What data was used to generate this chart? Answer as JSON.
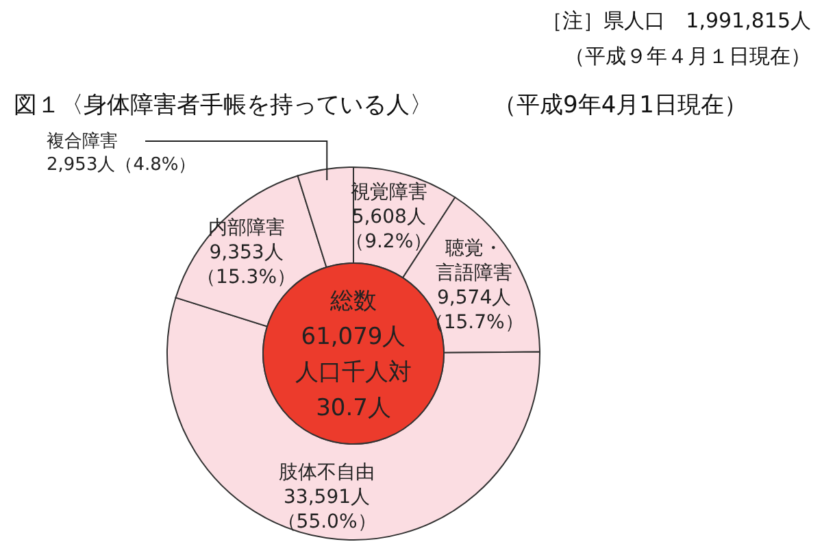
{
  "chart_data": {
    "type": "donut",
    "title": "図１〈身体障害者手帳を持っている人〉",
    "subtitle": "（平成9年4月1日現在）",
    "annotations": [
      "［注］県人口　1,991,815人",
      "（平成９年４月１日現在）",
      "総数",
      "61,079人",
      "人口千人対",
      "30.7人"
    ],
    "categories": [
      "視覚障害",
      "聴覚・言語障害",
      "肢体不自由",
      "内部障害",
      "複合障害"
    ],
    "values": [
      5608,
      9574,
      33591,
      9353,
      2953
    ],
    "value_labels": [
      "5,608人（9.2%）",
      "9,574人（15.7%）",
      "33,591人（55.0%）",
      "9,353人（15.3%）",
      "2,953人（4.8%）"
    ],
    "colors": [
      "#fbdde2",
      "#fbdde2",
      "#fbdde2",
      "#fbdde2",
      "#fbdde2"
    ],
    "legend": false
  }
}
